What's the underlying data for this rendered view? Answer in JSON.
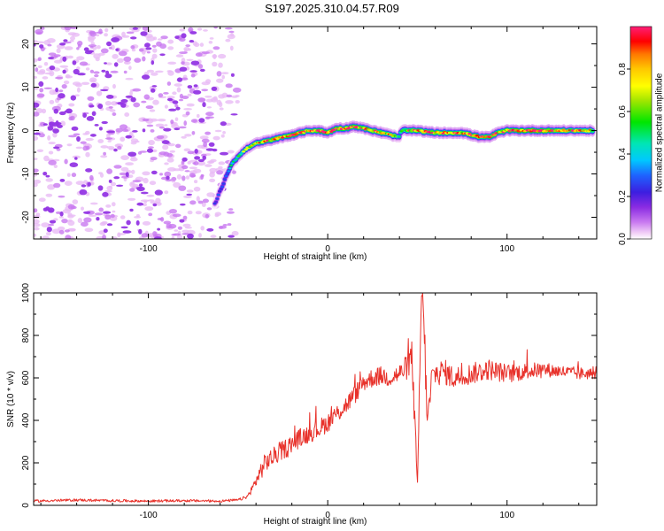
{
  "title": "S197.2025.310.04.57.R09",
  "chart_data": [
    {
      "type": "heatmap",
      "xlabel": "Height of straight line (km)",
      "ylabel": "Frequency (Hz)",
      "xlim": [
        -164,
        150
      ],
      "ylim": [
        -25,
        24
      ],
      "xticks": [
        -100,
        0,
        100
      ],
      "xtick_labels": [
        "-100",
        "0",
        "100"
      ],
      "yticks": [
        -20,
        -10,
        0,
        10,
        20
      ],
      "ytick_labels": [
        "-20",
        "-10",
        "0",
        "10",
        "20"
      ],
      "colorbar": {
        "label": "Normalized spectral amplitude",
        "range": [
          0,
          1
        ],
        "ticks": [
          0.0,
          0.2,
          0.4,
          0.6,
          0.8
        ],
        "tick_labels": [
          "0.0",
          "0.2",
          "0.4",
          "0.6",
          "0.8"
        ]
      },
      "noise_region": {
        "x_range": [
          -164,
          -50
        ],
        "freq_range": [
          -25,
          24
        ],
        "amplitude_range": [
          0.05,
          0.15
        ]
      },
      "ridge": {
        "x": [
          -63,
          -60,
          -57,
          -54,
          -50,
          -45,
          -40,
          -35,
          -30,
          -25,
          -20,
          -15,
          -10,
          -5,
          0,
          5,
          10,
          15,
          20,
          25,
          30,
          35,
          40,
          41,
          45,
          50,
          55,
          60,
          65,
          70,
          75,
          80,
          85,
          90,
          95,
          100,
          110,
          120,
          130,
          140,
          148
        ],
        "freq": [
          -17,
          -14,
          -11,
          -8,
          -6,
          -4,
          -3,
          -2.5,
          -2,
          -1.5,
          -1,
          -0.5,
          0,
          0,
          -0.5,
          0.5,
          0.5,
          1,
          0.5,
          0,
          -0.5,
          -1,
          -1.5,
          0,
          0,
          0,
          -0.3,
          -0.5,
          -0.5,
          -0.5,
          -0.5,
          -1,
          -1.5,
          -1.5,
          -0.5,
          0,
          0,
          0,
          0,
          0,
          0
        ],
        "amplitude": [
          0.2,
          0.25,
          0.3,
          0.4,
          0.5,
          0.6,
          0.7,
          0.8,
          0.85,
          0.8,
          0.9,
          0.85,
          0.8,
          0.9,
          0.85,
          0.9,
          0.85,
          0.9,
          0.8,
          0.85,
          0.8,
          0.75,
          0.5,
          0.5,
          0.8,
          0.85,
          0.8,
          0.85,
          0.8,
          0.85,
          0.8,
          0.85,
          0.8,
          0.85,
          0.8,
          0.85,
          0.9,
          0.9,
          0.8,
          0.8,
          0.7
        ]
      }
    },
    {
      "type": "line",
      "xlabel": "Height of straight line (km)",
      "ylabel": "SNR (10 * v/v)",
      "xlim": [
        -164,
        150
      ],
      "ylim": [
        0,
        1000
      ],
      "xticks": [
        -100,
        0,
        100
      ],
      "xtick_labels": [
        "-100",
        "0",
        "100"
      ],
      "yticks": [
        0,
        200,
        400,
        600,
        800,
        1000
      ],
      "ytick_labels": [
        "0",
        "200",
        "400",
        "600",
        "800",
        "1000"
      ],
      "series": [
        {
          "name": "SNR",
          "color": "#e8322b",
          "x": [
            -164,
            -140,
            -120,
            -100,
            -80,
            -60,
            -50,
            -45,
            -42,
            -38,
            -35,
            -30,
            -25,
            -20,
            -15,
            -10,
            -5,
            0,
            5,
            10,
            15,
            20,
            25,
            30,
            35,
            40,
            44,
            47,
            49,
            50,
            51,
            52,
            53,
            54,
            55,
            56,
            58,
            60,
            65,
            70,
            80,
            90,
            100,
            110,
            120,
            130,
            140,
            150
          ],
          "y": [
            20,
            25,
            22,
            20,
            22,
            20,
            25,
            40,
            80,
            150,
            200,
            230,
            260,
            290,
            320,
            340,
            360,
            390,
            430,
            470,
            520,
            580,
            600,
            610,
            600,
            620,
            650,
            700,
            300,
            60,
            500,
            900,
            1000,
            800,
            500,
            400,
            600,
            620,
            630,
            600,
            620,
            640,
            620,
            630,
            640,
            630,
            620,
            620
          ],
          "noise_amplitude": [
            6,
            6,
            6,
            6,
            6,
            6,
            6,
            8,
            20,
            40,
            45,
            45,
            45,
            45,
            45,
            45,
            45,
            45,
            45,
            45,
            45,
            45,
            45,
            45,
            45,
            45,
            60,
            80,
            60,
            20,
            100,
            100,
            60,
            100,
            100,
            80,
            70,
            60,
            60,
            55,
            50,
            50,
            45,
            40,
            35,
            30,
            30,
            25
          ]
        }
      ]
    }
  ]
}
